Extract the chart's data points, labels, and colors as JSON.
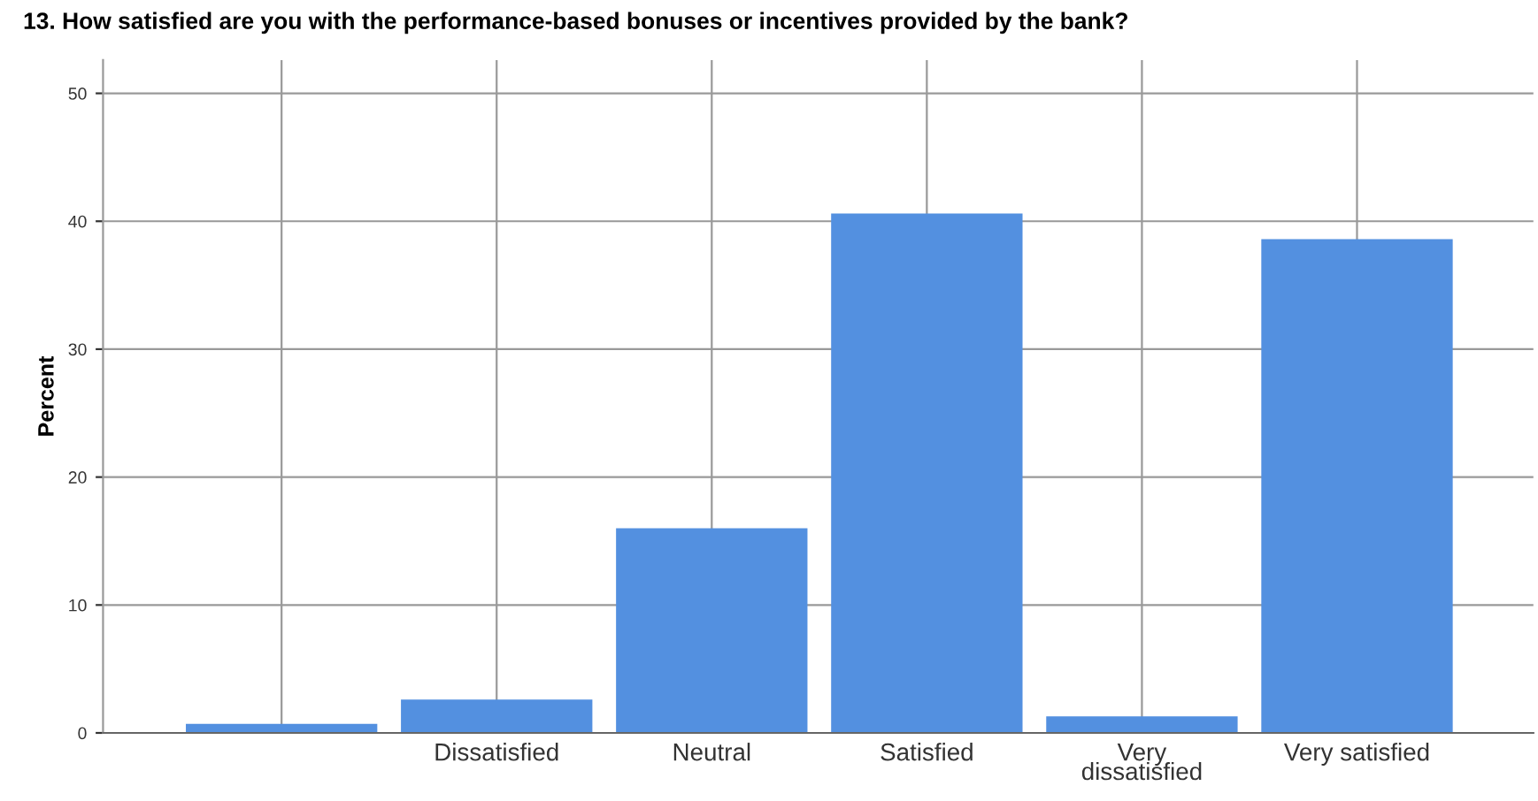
{
  "chart_data": {
    "type": "bar",
    "title": "13. How satisfied are you with the performance-based bonuses or incentives provided by the bank?",
    "ylabel": "Percent",
    "categories": [
      null,
      "Dissatisfied",
      "Neutral",
      "Satisfied",
      "Very dissatisfied",
      "Very satisfied"
    ],
    "values": [
      0.7,
      2.6,
      16.0,
      40.6,
      1.3,
      38.6
    ],
    "color": "#5390e0",
    "ylim": [
      0,
      52.6
    ],
    "yticks": [
      0,
      10,
      20,
      30,
      40,
      50
    ],
    "grid": true
  }
}
